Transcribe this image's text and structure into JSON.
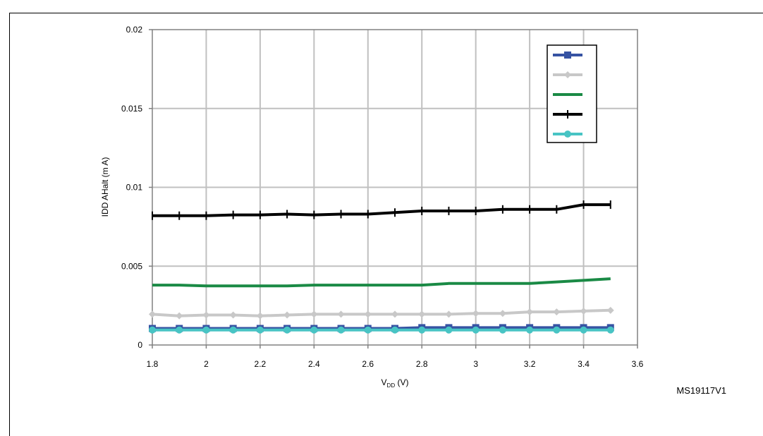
{
  "figure": {
    "title": "",
    "ref_code": "MS19117V1"
  },
  "chart_data": {
    "type": "line",
    "title": "",
    "xlabel_main": "V",
    "xlabel_sub": "DD",
    "xlabel_suffix": " (V)",
    "ylabel": "IDD AHalt (m A)",
    "xlim": [
      1.8,
      3.6
    ],
    "ylim": [
      0,
      0.02
    ],
    "x_ticks": [
      "1.8",
      "2",
      "2.2",
      "2.4",
      "2.6",
      "2.8",
      "3",
      "3.2",
      "3.4",
      "3.6"
    ],
    "y_ticks": [
      "0",
      "0.005",
      "0.01",
      "0.015",
      "0.02"
    ],
    "grid": true,
    "legend_position": "top-right",
    "x": [
      1.8,
      1.9,
      2.0,
      2.1,
      2.2,
      2.3,
      2.4,
      2.5,
      2.6,
      2.7,
      2.8,
      2.9,
      3.0,
      3.1,
      3.2,
      3.3,
      3.4,
      3.5
    ],
    "series": [
      {
        "color": "#3653a3",
        "marker": "square",
        "values": [
          0.00105,
          0.00105,
          0.00105,
          0.00105,
          0.00105,
          0.00105,
          0.00105,
          0.00105,
          0.00105,
          0.00105,
          0.0011,
          0.0011,
          0.0011,
          0.0011,
          0.0011,
          0.0011,
          0.0011,
          0.0011
        ]
      },
      {
        "color": "#c8c8c8",
        "marker": "diamond",
        "values": [
          0.00195,
          0.00185,
          0.0019,
          0.0019,
          0.00185,
          0.0019,
          0.00195,
          0.00195,
          0.00195,
          0.00195,
          0.00195,
          0.00195,
          0.002,
          0.002,
          0.0021,
          0.0021,
          0.00215,
          0.0022
        ]
      },
      {
        "color": "#1a8a45",
        "marker": "none",
        "values": [
          0.0038,
          0.0038,
          0.00375,
          0.00375,
          0.00375,
          0.00375,
          0.0038,
          0.0038,
          0.0038,
          0.0038,
          0.0038,
          0.0039,
          0.0039,
          0.0039,
          0.0039,
          0.004,
          0.0041,
          0.0042
        ]
      },
      {
        "color": "#000000",
        "marker": "plus",
        "values": [
          0.0082,
          0.0082,
          0.0082,
          0.00825,
          0.00825,
          0.0083,
          0.00825,
          0.0083,
          0.0083,
          0.0084,
          0.0085,
          0.0085,
          0.0085,
          0.0086,
          0.0086,
          0.0086,
          0.0089,
          0.0089
        ]
      },
      {
        "color": "#48c4c4",
        "marker": "circle",
        "values": [
          0.00095,
          0.00095,
          0.00095,
          0.00095,
          0.00095,
          0.00095,
          0.00095,
          0.00095,
          0.00095,
          0.00095,
          0.00095,
          0.00095,
          0.00095,
          0.00095,
          0.00095,
          0.00095,
          0.00095,
          0.00095
        ]
      }
    ]
  }
}
